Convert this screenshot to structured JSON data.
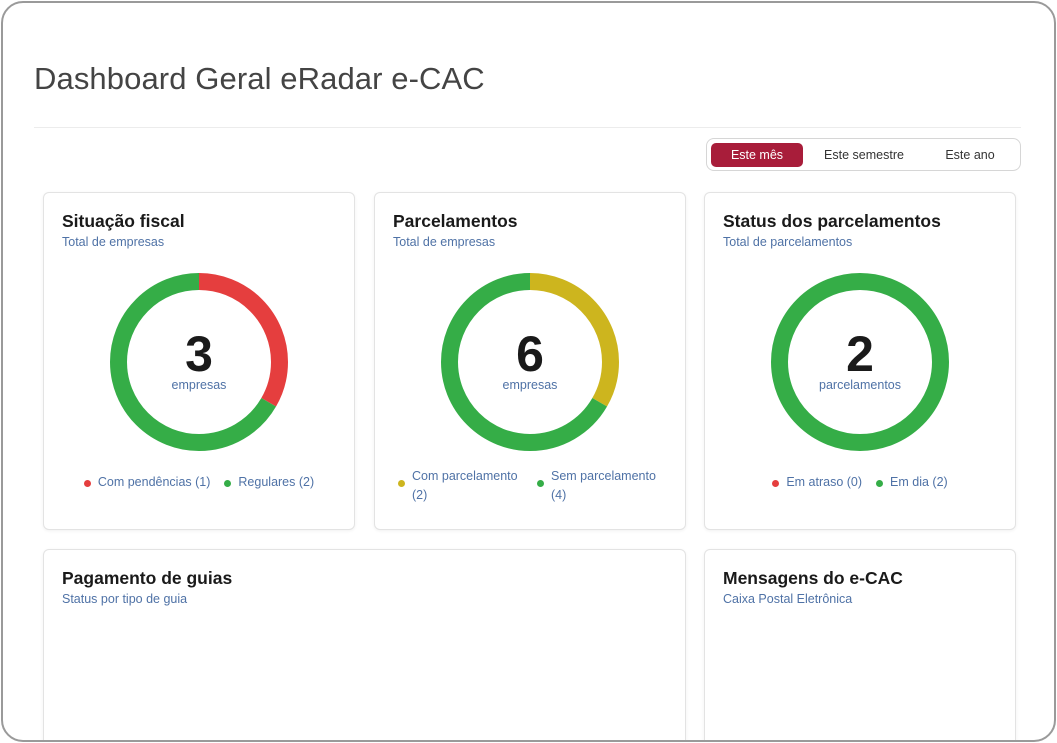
{
  "page": {
    "title": "Dashboard Geral eRadar e-CAC"
  },
  "period_toggle": {
    "options": [
      {
        "label": "Este mês",
        "active": true
      },
      {
        "label": "Este semestre",
        "active": false
      },
      {
        "label": "Este ano",
        "active": false
      }
    ]
  },
  "colors": {
    "red": "#e53e3e",
    "green": "#35ad47",
    "yellow": "#cdb51e",
    "accent": "#a81d3a",
    "subtext": "#4f72a6"
  },
  "cards": {
    "situacao_fiscal": {
      "title": "Situação fiscal",
      "subtitle": "Total de empresas",
      "total": "3",
      "unit": "empresas",
      "legend": [
        {
          "label": "Com pendências (1)",
          "color": "#e53e3e"
        },
        {
          "label": "Regulares (2)",
          "color": "#35ad47"
        }
      ],
      "segments": [
        {
          "value": 1,
          "color": "#e53e3e"
        },
        {
          "value": 2,
          "color": "#35ad47"
        }
      ]
    },
    "parcelamentos": {
      "title": "Parcelamentos",
      "subtitle": "Total de empresas",
      "total": "6",
      "unit": "empresas",
      "legend": [
        {
          "label": "Com parcelamento (2)",
          "color": "#cdb51e"
        },
        {
          "label": "Sem parcelamento (4)",
          "color": "#35ad47"
        }
      ],
      "segments": [
        {
          "value": 2,
          "color": "#cdb51e"
        },
        {
          "value": 4,
          "color": "#35ad47"
        }
      ]
    },
    "status_parcelamentos": {
      "title": "Status dos parcelamentos",
      "subtitle": "Total de parcelamentos",
      "total": "2",
      "unit": "parcelamentos",
      "legend": [
        {
          "label": "Em atraso (0)",
          "color": "#e53e3e"
        },
        {
          "label": "Em dia (2)",
          "color": "#35ad47"
        }
      ],
      "segments": [
        {
          "value": 0,
          "color": "#e53e3e"
        },
        {
          "value": 2,
          "color": "#35ad47"
        }
      ]
    },
    "pagamento_guias": {
      "title": "Pagamento de guias",
      "subtitle": "Status por tipo de guia"
    },
    "mensagens_ecac": {
      "title": "Mensagens do e-CAC",
      "subtitle": "Caixa Postal Eletrônica"
    }
  }
}
